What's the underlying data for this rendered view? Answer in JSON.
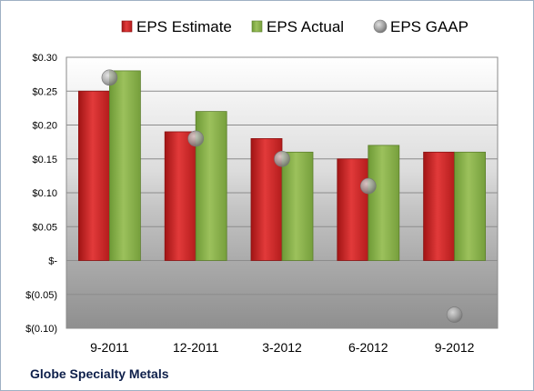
{
  "company_label": "Globe Specialty Metals",
  "chart_data": {
    "type": "bar",
    "categories": [
      "9-2011",
      "12-2011",
      "3-2012",
      "6-2012",
      "9-2012"
    ],
    "series": [
      {
        "name": "EPS Estimate",
        "type": "bar",
        "color": "#d42a2a",
        "values": [
          0.25,
          0.19,
          0.18,
          0.15,
          0.16
        ]
      },
      {
        "name": "EPS Actual",
        "type": "bar",
        "color": "#8db350",
        "values": [
          0.28,
          0.22,
          0.16,
          0.17,
          0.16
        ]
      },
      {
        "name": "EPS GAAP",
        "type": "scatter",
        "color": "#a9a9a9",
        "values": [
          0.27,
          0.18,
          0.15,
          0.11,
          -0.08
        ]
      }
    ],
    "yticks": [
      0.3,
      0.25,
      0.2,
      0.15,
      0.1,
      0.05,
      0,
      -0.05,
      -0.1
    ],
    "ytick_labels": [
      "$0.30",
      "$0.25",
      "$0.20",
      "$0.15",
      "$0.10",
      "$0.05",
      "$-",
      "$(0.05)",
      "$(0.10)"
    ],
    "ylim": [
      -0.1,
      0.3
    ],
    "grid": true,
    "legend_position": "top"
  }
}
